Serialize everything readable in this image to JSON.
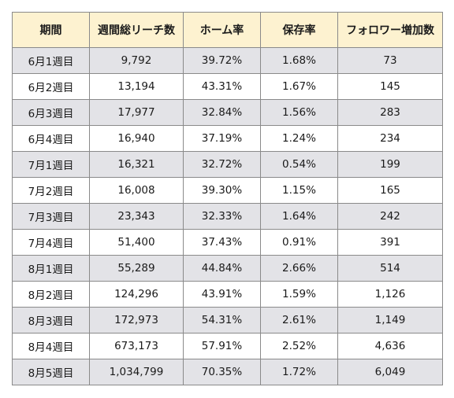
{
  "table": {
    "headers": [
      "期間",
      "週間総リーチ数",
      "ホーム率",
      "保存率",
      "フォロワー増加数"
    ],
    "rows": [
      [
        "6月1週目",
        "9,792",
        "39.72%",
        "1.68%",
        "73"
      ],
      [
        "6月2週目",
        "13,194",
        "43.31%",
        "1.67%",
        "145"
      ],
      [
        "6月3週目",
        "17,977",
        "32.84%",
        "1.56%",
        "283"
      ],
      [
        "6月4週目",
        "16,940",
        "37.19%",
        "1.24%",
        "234"
      ],
      [
        "7月1週目",
        "16,321",
        "32.72%",
        "0.54%",
        "199"
      ],
      [
        "7月2週目",
        "16,008",
        "39.30%",
        "1.15%",
        "165"
      ],
      [
        "7月3週目",
        "23,343",
        "32.33%",
        "1.64%",
        "242"
      ],
      [
        "7月4週目",
        "51,400",
        "37.43%",
        "0.91%",
        "391"
      ],
      [
        "8月1週目",
        "55,289",
        "44.84%",
        "2.66%",
        "514"
      ],
      [
        "8月2週目",
        "124,296",
        "43.91%",
        "1.59%",
        "1,126"
      ],
      [
        "8月3週目",
        "172,973",
        "54.31%",
        "2.61%",
        "1,149"
      ],
      [
        "8月4週目",
        "673,173",
        "57.91%",
        "2.52%",
        "4,636"
      ],
      [
        "8月5週目",
        "1,034,799",
        "70.35%",
        "1.72%",
        "6,049"
      ]
    ]
  },
  "colors": {
    "header_bg": "#fdf2d0",
    "shaded_row_bg": "#e3e3e7",
    "plain_row_bg": "#ffffff",
    "border": "#8a8a8a"
  }
}
